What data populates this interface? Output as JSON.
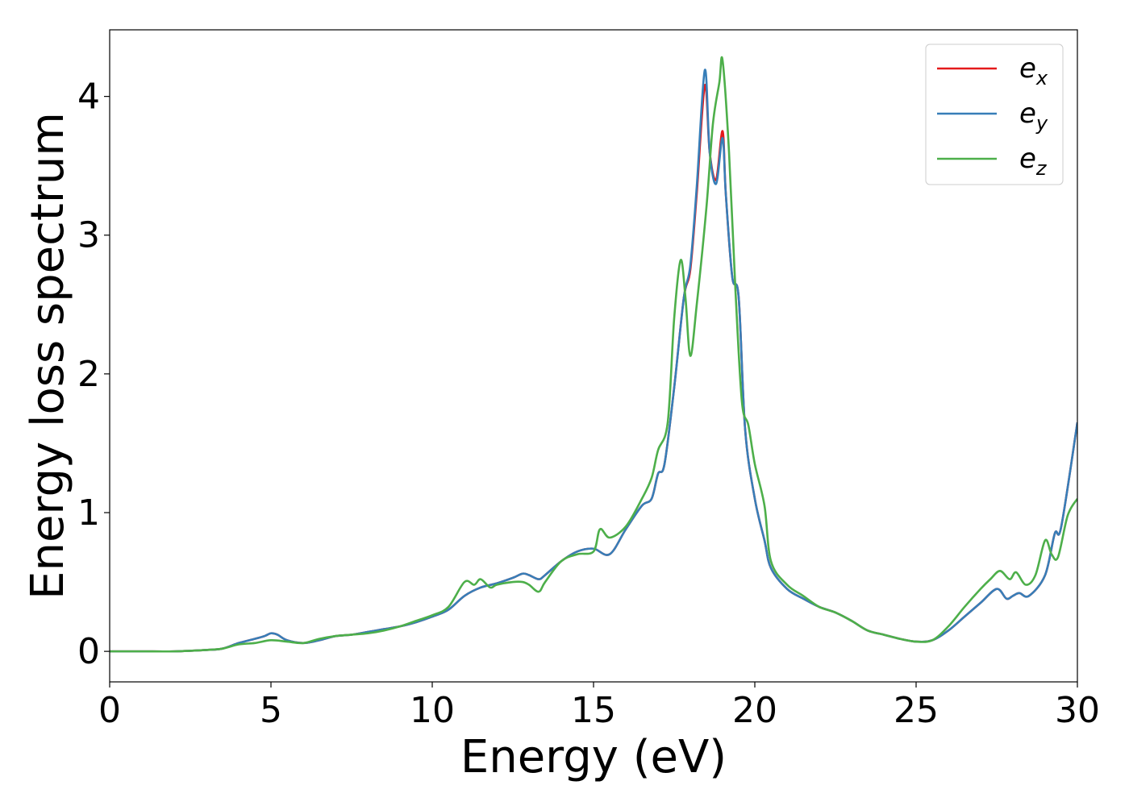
{
  "chart_data": {
    "type": "line",
    "title": "",
    "xlabel": "Energy (eV)",
    "ylabel": "Energy loss spectrum",
    "xlim": [
      0,
      30
    ],
    "ylim": [
      -0.22,
      4.48
    ],
    "xticks": [
      0,
      5,
      10,
      15,
      20,
      25,
      30
    ],
    "yticks": [
      0,
      1,
      2,
      3,
      4
    ],
    "grid": false,
    "legend_position": "top-right",
    "legend": [
      {
        "base": "e",
        "sub": "x",
        "color": "#e41a1c"
      },
      {
        "base": "e",
        "sub": "y",
        "color": "#377eb8"
      },
      {
        "base": "e",
        "sub": "z",
        "color": "#4daf4a"
      }
    ],
    "series": [
      {
        "name": "e_x",
        "color": "#e41a1c",
        "x": [
          0,
          1,
          2,
          3,
          3.5,
          4,
          4.5,
          4.8,
          5.0,
          5.2,
          5.5,
          6.0,
          6.5,
          7.0,
          7.5,
          8.0,
          8.5,
          9.0,
          9.5,
          10.0,
          10.5,
          11.0,
          11.5,
          12.0,
          12.5,
          12.8,
          13.0,
          13.3,
          13.5,
          14.0,
          14.5,
          15.0,
          15.5,
          16.0,
          16.5,
          16.8,
          17.0,
          17.2,
          17.5,
          17.8,
          18.0,
          18.2,
          18.45,
          18.6,
          18.8,
          19.0,
          19.1,
          19.3,
          19.5,
          19.7,
          20.0,
          20.3,
          20.5,
          21.0,
          21.5,
          22.0,
          22.5,
          23.0,
          23.5,
          24.0,
          24.5,
          25.0,
          25.5,
          26.0,
          26.5,
          27.0,
          27.5,
          27.8,
          28.0,
          28.2,
          28.5,
          29.0,
          29.3,
          29.5,
          30.0
        ],
        "y": [
          0,
          0,
          0,
          0.01,
          0.02,
          0.06,
          0.09,
          0.11,
          0.13,
          0.12,
          0.08,
          0.06,
          0.08,
          0.11,
          0.12,
          0.14,
          0.16,
          0.18,
          0.21,
          0.25,
          0.3,
          0.4,
          0.46,
          0.49,
          0.53,
          0.56,
          0.55,
          0.52,
          0.55,
          0.65,
          0.72,
          0.74,
          0.7,
          0.88,
          1.05,
          1.1,
          1.28,
          1.35,
          1.9,
          2.55,
          2.75,
          3.3,
          4.08,
          3.6,
          3.4,
          3.75,
          3.3,
          2.7,
          2.55,
          1.6,
          1.1,
          0.8,
          0.6,
          0.45,
          0.38,
          0.32,
          0.28,
          0.22,
          0.15,
          0.12,
          0.09,
          0.07,
          0.08,
          0.15,
          0.25,
          0.35,
          0.45,
          0.38,
          0.4,
          0.42,
          0.4,
          0.55,
          0.85,
          0.9,
          1.65
        ]
      },
      {
        "name": "e_y",
        "color": "#377eb8",
        "x": [
          0,
          1,
          2,
          3,
          3.5,
          4,
          4.5,
          4.8,
          5.0,
          5.2,
          5.5,
          6.0,
          6.5,
          7.0,
          7.5,
          8.0,
          8.5,
          9.0,
          9.5,
          10.0,
          10.5,
          11.0,
          11.5,
          12.0,
          12.5,
          12.8,
          13.0,
          13.3,
          13.5,
          14.0,
          14.5,
          15.0,
          15.5,
          16.0,
          16.5,
          16.8,
          17.0,
          17.2,
          17.5,
          17.8,
          18.0,
          18.2,
          18.45,
          18.6,
          18.8,
          19.0,
          19.1,
          19.3,
          19.5,
          19.7,
          20.0,
          20.3,
          20.5,
          21.0,
          21.5,
          22.0,
          22.5,
          23.0,
          23.5,
          24.0,
          24.5,
          25.0,
          25.5,
          26.0,
          26.5,
          27.0,
          27.5,
          27.8,
          28.0,
          28.2,
          28.5,
          29.0,
          29.3,
          29.5,
          30.0
        ],
        "y": [
          0,
          0,
          0,
          0.01,
          0.02,
          0.06,
          0.09,
          0.11,
          0.13,
          0.12,
          0.08,
          0.06,
          0.08,
          0.11,
          0.12,
          0.14,
          0.16,
          0.18,
          0.21,
          0.25,
          0.3,
          0.4,
          0.46,
          0.49,
          0.53,
          0.56,
          0.55,
          0.52,
          0.55,
          0.65,
          0.72,
          0.74,
          0.7,
          0.88,
          1.05,
          1.1,
          1.28,
          1.35,
          1.9,
          2.55,
          2.78,
          3.35,
          4.19,
          3.6,
          3.37,
          3.7,
          3.3,
          2.7,
          2.55,
          1.6,
          1.1,
          0.8,
          0.6,
          0.45,
          0.38,
          0.32,
          0.28,
          0.22,
          0.15,
          0.12,
          0.09,
          0.07,
          0.08,
          0.15,
          0.25,
          0.35,
          0.45,
          0.38,
          0.4,
          0.42,
          0.4,
          0.55,
          0.85,
          0.9,
          1.65
        ]
      },
      {
        "name": "e_z",
        "color": "#4daf4a",
        "x": [
          0,
          1,
          2,
          3,
          3.5,
          4,
          4.5,
          5.0,
          5.5,
          6.0,
          6.5,
          7.0,
          7.5,
          8.0,
          8.5,
          9.0,
          9.5,
          10.0,
          10.5,
          11.0,
          11.3,
          11.5,
          11.8,
          12.0,
          12.5,
          12.8,
          13.0,
          13.3,
          13.5,
          14.0,
          14.5,
          15.0,
          15.2,
          15.5,
          16.0,
          16.5,
          16.8,
          17.0,
          17.3,
          17.5,
          17.7,
          17.85,
          18.0,
          18.2,
          18.5,
          18.7,
          18.9,
          19.0,
          19.2,
          19.4,
          19.6,
          19.8,
          20.0,
          20.3,
          20.5,
          21.0,
          21.5,
          22.0,
          22.5,
          23.0,
          23.5,
          24.0,
          24.5,
          25.0,
          25.5,
          26.0,
          26.5,
          27.0,
          27.3,
          27.6,
          27.9,
          28.1,
          28.4,
          28.7,
          29.0,
          29.2,
          29.4,
          29.7,
          30.0
        ],
        "y": [
          0,
          0,
          0,
          0.01,
          0.02,
          0.05,
          0.06,
          0.08,
          0.07,
          0.06,
          0.09,
          0.11,
          0.12,
          0.13,
          0.15,
          0.18,
          0.22,
          0.26,
          0.32,
          0.5,
          0.48,
          0.52,
          0.46,
          0.48,
          0.5,
          0.5,
          0.48,
          0.43,
          0.5,
          0.65,
          0.7,
          0.72,
          0.88,
          0.82,
          0.9,
          1.1,
          1.25,
          1.45,
          1.65,
          2.4,
          2.82,
          2.55,
          2.13,
          2.5,
          3.2,
          3.8,
          4.1,
          4.26,
          3.6,
          2.6,
          1.8,
          1.63,
          1.35,
          1.05,
          0.65,
          0.48,
          0.4,
          0.32,
          0.28,
          0.22,
          0.15,
          0.12,
          0.09,
          0.07,
          0.08,
          0.18,
          0.32,
          0.45,
          0.52,
          0.58,
          0.52,
          0.57,
          0.48,
          0.55,
          0.8,
          0.7,
          0.68,
          0.98,
          1.1
        ]
      }
    ]
  }
}
